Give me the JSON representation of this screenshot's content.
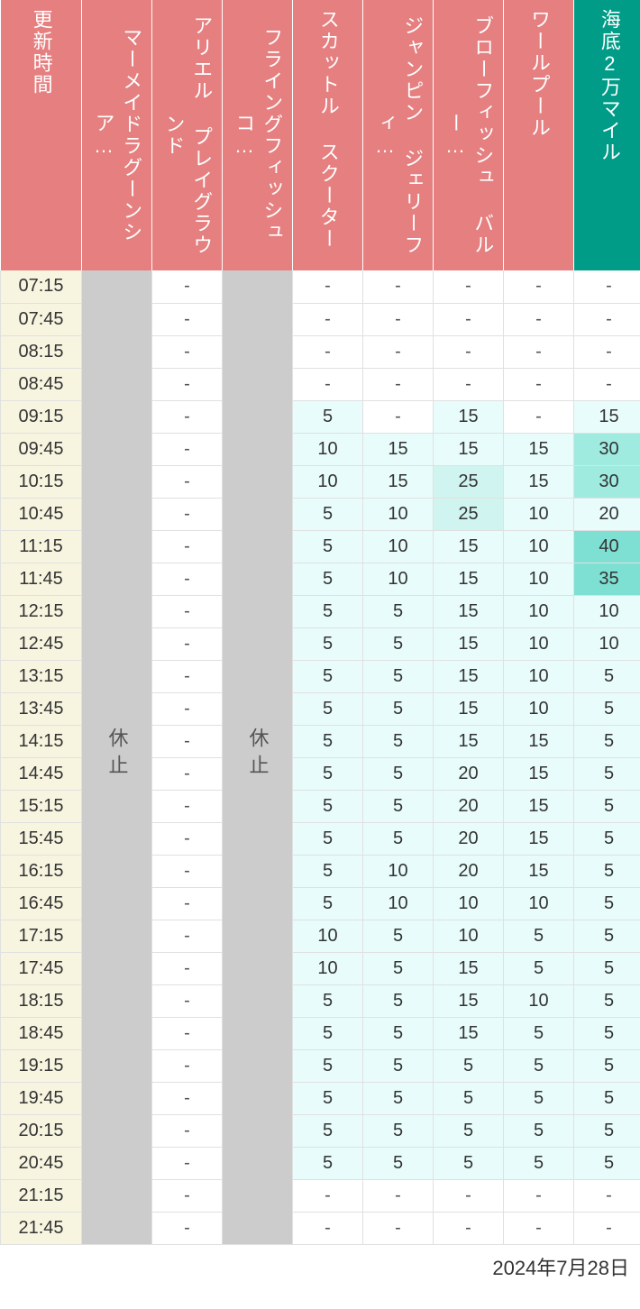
{
  "colors": {
    "header_pink": "#e57f80",
    "header_teal": "#009c87",
    "time_bg": "#f7f5e0",
    "closed_bg": "#cccccc",
    "dash_bg": "#ffffff",
    "value_bg_0": "#ffffff",
    "value_bg_1": "#e8fdfb",
    "value_bg_2": "#d0f5f0",
    "value_bg_3": "#a0ebe0",
    "value_bg_4": "#7de0d2",
    "border": "#e0e0e0",
    "text_white": "#ffffff",
    "text_dark": "#333333"
  },
  "thresholds": {
    "level1_max": 20,
    "level2_max": 25,
    "level3_max": 30,
    "level4_min": 35
  },
  "headers": [
    {
      "label": "更新時間",
      "type": "time"
    },
    {
      "label": "マーメイドラグーンシア…",
      "type": "pink"
    },
    {
      "label": "アリエル プレイグラウンド",
      "type": "pink"
    },
    {
      "label": "フライングフィッシュコ…",
      "type": "pink"
    },
    {
      "label": "スカットル スクーター",
      "type": "pink"
    },
    {
      "label": "ジャンピン ジェリーフィ…",
      "type": "pink"
    },
    {
      "label": "ブローフィッシュ バルー…",
      "type": "pink"
    },
    {
      "label": "ワールプール",
      "type": "pink"
    },
    {
      "label": "海底2万マイル",
      "type": "teal"
    }
  ],
  "times": [
    "07:15",
    "07:45",
    "08:15",
    "08:45",
    "09:15",
    "09:45",
    "10:15",
    "10:45",
    "11:15",
    "11:45",
    "12:15",
    "12:45",
    "13:15",
    "13:45",
    "14:15",
    "14:45",
    "15:15",
    "15:45",
    "16:15",
    "16:45",
    "17:15",
    "17:45",
    "18:15",
    "18:45",
    "19:15",
    "19:45",
    "20:15",
    "20:45",
    "21:15",
    "21:45"
  ],
  "closed_label": "休止",
  "columns": {
    "col1": {
      "type": "closed"
    },
    "col2": {
      "type": "dash_all"
    },
    "col3": {
      "type": "closed"
    },
    "col4": {
      "type": "values",
      "data": [
        "-",
        "-",
        "-",
        "-",
        "5",
        "10",
        "10",
        "5",
        "5",
        "5",
        "5",
        "5",
        "5",
        "5",
        "5",
        "5",
        "5",
        "5",
        "5",
        "5",
        "10",
        "10",
        "5",
        "5",
        "5",
        "5",
        "5",
        "5",
        "-",
        "-"
      ]
    },
    "col5": {
      "type": "values",
      "data": [
        "-",
        "-",
        "-",
        "-",
        "-",
        "15",
        "15",
        "10",
        "10",
        "10",
        "5",
        "5",
        "5",
        "5",
        "5",
        "5",
        "5",
        "5",
        "10",
        "10",
        "5",
        "5",
        "5",
        "5",
        "5",
        "5",
        "5",
        "5",
        "-",
        "-"
      ]
    },
    "col6": {
      "type": "values",
      "data": [
        "-",
        "-",
        "-",
        "-",
        "15",
        "15",
        "25",
        "25",
        "15",
        "15",
        "15",
        "15",
        "15",
        "15",
        "15",
        "20",
        "20",
        "20",
        "20",
        "10",
        "10",
        "15",
        "15",
        "15",
        "5",
        "5",
        "5",
        "5",
        "-",
        "-"
      ]
    },
    "col7": {
      "type": "values",
      "data": [
        "-",
        "-",
        "-",
        "-",
        "-",
        "15",
        "15",
        "10",
        "10",
        "10",
        "10",
        "10",
        "10",
        "10",
        "15",
        "15",
        "15",
        "15",
        "15",
        "10",
        "5",
        "5",
        "10",
        "5",
        "5",
        "5",
        "5",
        "5",
        "-",
        "-"
      ]
    },
    "col8": {
      "type": "values",
      "data": [
        "-",
        "-",
        "-",
        "-",
        "15",
        "30",
        "30",
        "20",
        "40",
        "35",
        "10",
        "10",
        "5",
        "5",
        "5",
        "5",
        "5",
        "5",
        "5",
        "5",
        "5",
        "5",
        "5",
        "5",
        "5",
        "5",
        "5",
        "5",
        "-",
        "-"
      ]
    }
  },
  "footer_date": "2024年7月28日"
}
